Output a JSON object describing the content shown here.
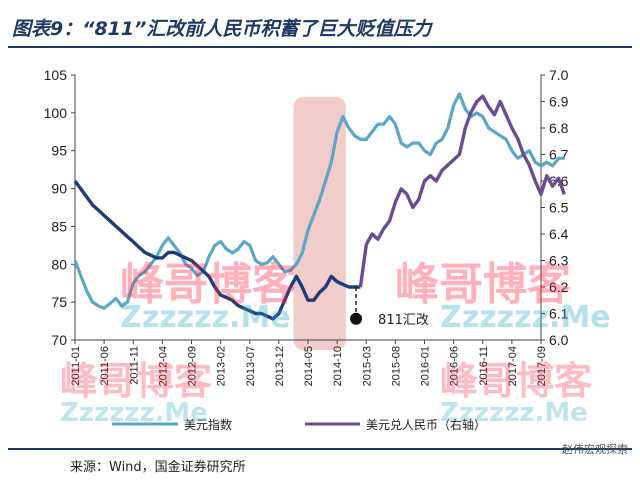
{
  "title": "图表9：“811”汇改前人民币积蓄了巨大贬值压力",
  "source": "来源：Wind，国金证券研究所",
  "watermark": {
    "corner": "赵伟宏观探索",
    "text1": "峰哥博客",
    "text2": "Zzzzzz.Me"
  },
  "chart_data": {
    "type": "line",
    "x_tick_labels": [
      "2011-01",
      "2011-06",
      "2011-11",
      "2012-04",
      "2012-09",
      "2013-02",
      "2013-07",
      "2013-12",
      "2014-05",
      "2014-10",
      "2015-03",
      "2015-08",
      "2016-01",
      "2016-06",
      "2016-11",
      "2017-04",
      "2017-09"
    ],
    "ylim": [
      70,
      105
    ],
    "y_ticks": [
      70,
      75,
      80,
      85,
      90,
      95,
      100,
      105
    ],
    "y2lim": [
      6.0,
      7.0
    ],
    "y2_ticks": [
      "6.0",
      "6.1",
      "6.2",
      "6.3",
      "6.4",
      "6.5",
      "6.6",
      "6.7",
      "6.8",
      "6.9",
      "7.0"
    ],
    "shaded_region": {
      "from": 7.5,
      "to": 9.3,
      "color": "#e8a0a0"
    },
    "annotation": {
      "label": "811汇改",
      "x": 9.65,
      "y2": 6.08
    },
    "series": [
      {
        "name": "美元指数",
        "axis": "left",
        "color": "#5aa7c7",
        "x": [
          0,
          0.2,
          0.4,
          0.6,
          0.8,
          1.0,
          1.2,
          1.4,
          1.6,
          1.8,
          2.0,
          2.2,
          2.4,
          2.6,
          2.8,
          3.0,
          3.2,
          3.4,
          3.6,
          3.8,
          4.0,
          4.2,
          4.4,
          4.6,
          4.8,
          5.0,
          5.2,
          5.4,
          5.6,
          5.8,
          6.0,
          6.2,
          6.4,
          6.6,
          6.8,
          7.0,
          7.2,
          7.4,
          7.6,
          7.8,
          8.0,
          8.2,
          8.4,
          8.6,
          8.8,
          9.0,
          9.2,
          9.4,
          9.6,
          9.8,
          10.0,
          10.2,
          10.4,
          10.6,
          10.8,
          11.0,
          11.2,
          11.4,
          11.6,
          11.8,
          12.0,
          12.2,
          12.4,
          12.6,
          12.8,
          13.0,
          13.2,
          13.4,
          13.6,
          13.8,
          14.0,
          14.2,
          14.4,
          14.6,
          14.8,
          15.0,
          15.2,
          15.4,
          15.6,
          15.8,
          16.0,
          16.2,
          16.4,
          16.6,
          16.8
        ],
        "values": [
          80.5,
          78.5,
          76.5,
          75.0,
          74.5,
          74.2,
          74.8,
          75.5,
          74.5,
          75.0,
          77.5,
          78.5,
          79.0,
          80.0,
          81.0,
          82.5,
          83.5,
          82.5,
          81.5,
          80.0,
          79.5,
          78.5,
          79.0,
          81.0,
          82.5,
          83.0,
          82.0,
          81.5,
          82.0,
          83.0,
          82.5,
          80.5,
          80.0,
          80.2,
          81.0,
          80.0,
          79.0,
          79.2,
          80.0,
          81.5,
          84.5,
          86.5,
          88.5,
          91.0,
          93.5,
          97.5,
          99.5,
          98.0,
          97.0,
          96.5,
          96.5,
          97.5,
          98.5,
          98.5,
          99.5,
          98.5,
          96.0,
          95.5,
          96.0,
          96.0,
          95.0,
          94.5,
          96.0,
          96.5,
          98.0,
          101.0,
          102.5,
          100.5,
          99.5,
          100.0,
          99.5,
          98.0,
          97.5,
          97.0,
          96.5,
          95.0,
          94.0,
          94.5,
          95.0,
          93.5,
          93.0,
          93.5,
          93.0,
          94.0,
          94.0
        ]
      },
      {
        "name": "美元兑人民币（右轴）",
        "axis": "right",
        "color": "#1f3c7a",
        "color_after": "#6a4c93",
        "x": [
          0,
          0.2,
          0.4,
          0.6,
          0.8,
          1.0,
          1.2,
          1.4,
          1.6,
          1.8,
          2.0,
          2.2,
          2.4,
          2.6,
          2.8,
          3.0,
          3.2,
          3.4,
          3.6,
          3.8,
          4.0,
          4.2,
          4.4,
          4.6,
          4.8,
          5.0,
          5.2,
          5.4,
          5.6,
          5.8,
          6.0,
          6.2,
          6.4,
          6.6,
          6.8,
          7.0,
          7.2,
          7.4,
          7.6,
          7.8,
          8.0,
          8.2,
          8.4,
          8.6,
          8.8,
          9.0,
          9.2,
          9.4,
          9.6,
          9.8,
          10.0,
          10.2,
          10.4,
          10.6,
          10.8,
          11.0,
          11.2,
          11.4,
          11.6,
          11.8,
          12.0,
          12.2,
          12.4,
          12.6,
          12.8,
          13.0,
          13.2,
          13.4,
          13.6,
          13.8,
          14.0,
          14.2,
          14.4,
          14.6,
          14.8,
          15.0,
          15.2,
          15.4,
          15.6,
          15.8,
          16.0,
          16.2,
          16.4,
          16.6,
          16.8
        ],
        "values": [
          6.6,
          6.57,
          6.54,
          6.51,
          6.49,
          6.47,
          6.45,
          6.43,
          6.41,
          6.39,
          6.37,
          6.35,
          6.33,
          6.32,
          6.31,
          6.31,
          6.33,
          6.33,
          6.32,
          6.31,
          6.3,
          6.28,
          6.26,
          6.24,
          6.2,
          6.17,
          6.16,
          6.15,
          6.13,
          6.12,
          6.11,
          6.1,
          6.1,
          6.09,
          6.08,
          6.1,
          6.15,
          6.2,
          6.24,
          6.2,
          6.15,
          6.15,
          6.18,
          6.2,
          6.24,
          6.22,
          6.21,
          6.2,
          6.2,
          6.2,
          6.36,
          6.4,
          6.38,
          6.42,
          6.45,
          6.52,
          6.57,
          6.55,
          6.5,
          6.53,
          6.6,
          6.62,
          6.6,
          6.64,
          6.66,
          6.68,
          6.7,
          6.8,
          6.86,
          6.9,
          6.92,
          6.88,
          6.85,
          6.9,
          6.85,
          6.8,
          6.76,
          6.7,
          6.66,
          6.6,
          6.55,
          6.62,
          6.58,
          6.61,
          6.55
        ]
      }
    ]
  }
}
